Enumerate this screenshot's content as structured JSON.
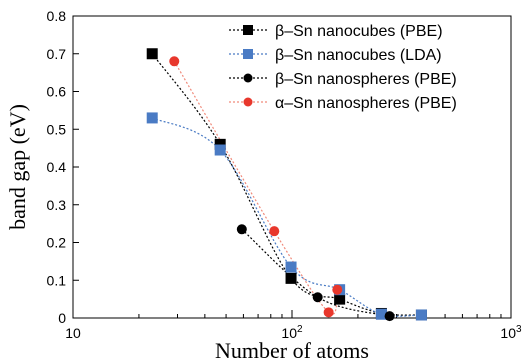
{
  "chart_data": {
    "type": "scatter",
    "xlabel": "Number of atoms",
    "ylabel": "band gap (eV)",
    "xscale": "log",
    "xlim": [
      10,
      1000
    ],
    "ylim": [
      0,
      0.8
    ],
    "x_tick_labels": [
      "10",
      "10 2",
      "10 3"
    ],
    "y_ticks": [
      0,
      0.1,
      0.2,
      0.3,
      0.4,
      0.5,
      0.6,
      0.7,
      0.8
    ],
    "y_tick_labels": [
      "0",
      "0.1",
      "0.2",
      "0.3",
      "0.4",
      "0.5",
      "0.6",
      "0.7",
      "0.8"
    ],
    "grid": false,
    "legend_position": "top-right",
    "series": [
      {
        "name": "β–Sn nanocubes (PBE)",
        "marker": "square",
        "color": "#000000",
        "line_color": "#000000",
        "x": [
          23,
          47,
          99,
          165,
          256,
          390
        ],
        "y": [
          0.7,
          0.46,
          0.105,
          0.05,
          0.012,
          0.008
        ]
      },
      {
        "name": "β–Sn nanocubes (LDA)",
        "marker": "square",
        "color": "#4a7bc4",
        "line_color": "#4a7bc4",
        "x": [
          23,
          47,
          99,
          165,
          256,
          390
        ],
        "y": [
          0.53,
          0.445,
          0.135,
          0.075,
          0.01,
          0.008
        ]
      },
      {
        "name": "β–Sn nanospheres (PBE)",
        "marker": "circle",
        "color": "#000000",
        "line_color": "#000000",
        "x": [
          59,
          131,
          279
        ],
        "y": [
          0.235,
          0.055,
          0.005
        ]
      },
      {
        "name": "α–Sn nanospheres (PBE)",
        "marker": "circle",
        "color": "#e8372c",
        "line_color": "#f08a7a",
        "x": [
          29,
          83,
          147,
          161
        ],
        "y": [
          0.68,
          0.23,
          0.015,
          0.075
        ]
      }
    ]
  }
}
